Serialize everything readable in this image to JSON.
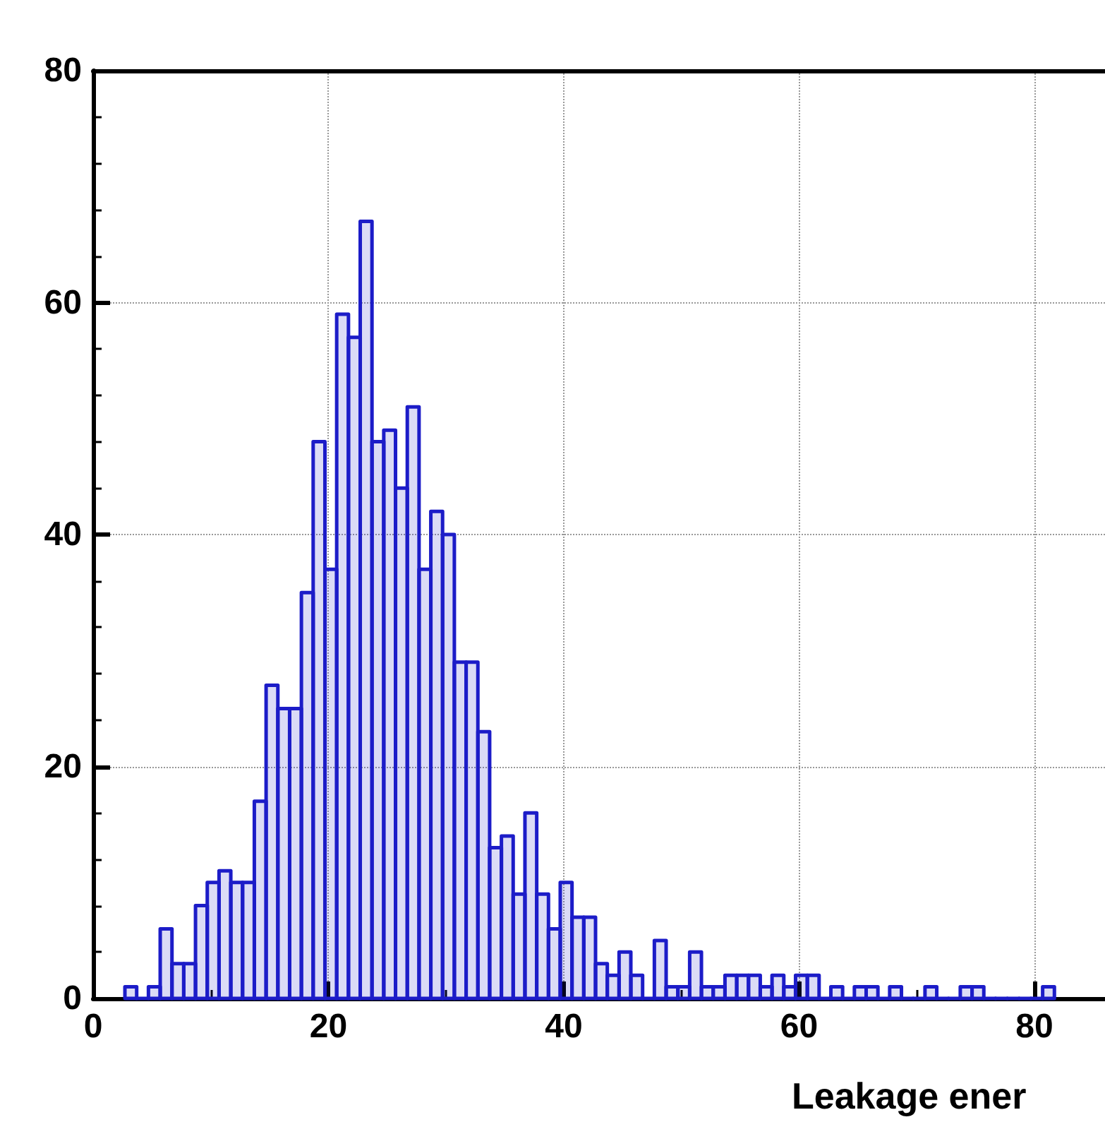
{
  "chart_data": {
    "type": "histogram",
    "xlabel": "Leakage ener",
    "bins": [
      2.7,
      3.7,
      4.7,
      5.7,
      6.7,
      7.7,
      8.7,
      9.7,
      10.7,
      11.7,
      12.7,
      13.7,
      14.7,
      15.7,
      16.7,
      17.7,
      18.7,
      19.7,
      20.7,
      21.7,
      22.7,
      23.7,
      24.7,
      25.7,
      26.7,
      27.7,
      28.7,
      29.7,
      30.7,
      31.7,
      32.7,
      33.7,
      34.7,
      35.7,
      36.7,
      37.7,
      38.7,
      39.7,
      40.7,
      41.7,
      42.7,
      43.7,
      44.7,
      45.7,
      46.7,
      47.7,
      48.7,
      49.7,
      50.7,
      51.7,
      52.7,
      53.7,
      54.7,
      55.7,
      56.7,
      57.7,
      58.7,
      59.7,
      60.7,
      61.7,
      62.7,
      63.7,
      64.7,
      65.7,
      66.7,
      67.7,
      68.7,
      69.7,
      70.7,
      71.7,
      72.7,
      73.7,
      74.7,
      75.7,
      76.7,
      77.7,
      78.7,
      79.7,
      80.7,
      81.7
    ],
    "values": [
      1,
      0,
      1,
      6,
      3,
      3,
      8,
      10,
      11,
      10,
      10,
      17,
      27,
      25,
      25,
      35,
      48,
      37,
      59,
      57,
      67,
      48,
      49,
      44,
      51,
      37,
      42,
      40,
      29,
      29,
      23,
      13,
      14,
      9,
      16,
      9,
      6,
      10,
      7,
      7,
      3,
      2,
      4,
      2,
      0,
      5,
      1,
      1,
      4,
      1,
      1,
      2,
      2,
      2,
      1,
      2,
      1,
      2,
      2,
      0,
      1,
      0,
      1,
      1,
      0,
      1,
      0,
      0,
      1,
      0,
      0,
      1,
      1,
      0,
      0,
      0,
      0,
      0,
      1
    ],
    "color": "#1c1cc8",
    "xlim": [
      0,
      86
    ],
    "xticks": [
      0,
      20,
      40,
      60,
      80
    ],
    "ylim": [
      0,
      80
    ],
    "yticks": [
      0,
      20,
      40,
      60,
      80
    ],
    "grid": true
  }
}
